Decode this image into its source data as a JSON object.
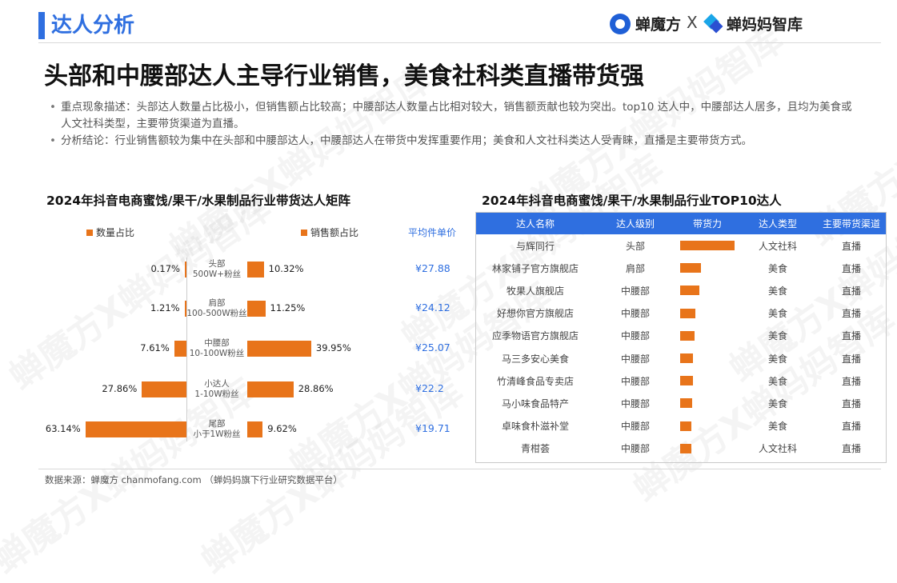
{
  "header": {
    "section_title": "达人分析",
    "logo_left": "蝉魔方",
    "logo_sep": "X",
    "logo_right": "蝉妈妈智库"
  },
  "page_title": "头部和中腰部达人主导行业销售，美食社科类直播带货强",
  "bullets": [
    "重点现象描述：头部达人数量占比极小，但销售额占比较高；中腰部达人数量占比相对较大，销售额贡献也较为突出。top10 达人中，中腰部达人居多，且均为美食或人文社科类型，主要带货渠道为直播。",
    "分析结论：行业销售额较为集中在头部和中腰部达人，中腰部达人在带货中发挥重要作用；美食和人文社科类达人受青睐，直播是主要带货方式。"
  ],
  "watermark": "蝉魔方X蝉妈妈智库",
  "colors": {
    "accent_blue": "#2f6fe0",
    "bar_orange": "#e8741a"
  },
  "chart_data": [
    {
      "type": "bar",
      "title": "2024年抖音电商蜜饯/果干/水果制品行业带货达人矩阵",
      "legend_left": "数量占比",
      "legend_right": "销售额占比",
      "price_header": "平均件单价",
      "categories": [
        {
          "name": "头部",
          "sub": "500W+粉丝"
        },
        {
          "name": "肩部",
          "sub": "100-500W粉丝"
        },
        {
          "name": "中腰部",
          "sub": "10-100W粉丝"
        },
        {
          "name": "小达人",
          "sub": "1-10W粉丝"
        },
        {
          "name": "尾部",
          "sub": "小于1W粉丝"
        }
      ],
      "series": [
        {
          "name": "数量占比",
          "values": [
            0.17,
            1.21,
            7.61,
            27.86,
            63.14
          ],
          "labels": [
            "0.17%",
            "1.21%",
            "7.61%",
            "27.86%",
            "63.14%"
          ]
        },
        {
          "name": "销售额占比",
          "values": [
            10.32,
            11.25,
            39.95,
            28.86,
            9.62
          ],
          "labels": [
            "10.32%",
            "11.25%",
            "39.95%",
            "28.86%",
            "9.62%"
          ]
        }
      ],
      "avg_price": [
        "¥27.88",
        "¥24.12",
        "¥25.07",
        "¥22.2",
        "¥19.71"
      ]
    },
    {
      "type": "table",
      "title": "2024年抖音电商蜜饯/果干/水果制品行业TOP10达人",
      "columns": [
        "达人名称",
        "达人级别",
        "带货力",
        "达人类型",
        "主要带货渠道"
      ],
      "rows": [
        {
          "name": "与辉同行",
          "level": "头部",
          "power": 1.0,
          "type": "人文社科",
          "channel": "直播"
        },
        {
          "name": "林家铺子官方旗舰店",
          "level": "肩部",
          "power": 0.38,
          "type": "美食",
          "channel": "直播"
        },
        {
          "name": "牧果人旗舰店",
          "level": "中腰部",
          "power": 0.36,
          "type": "美食",
          "channel": "直播"
        },
        {
          "name": "好想你官方旗舰店",
          "level": "中腰部",
          "power": 0.28,
          "type": "美食",
          "channel": "直播"
        },
        {
          "name": "应季物语官方旗舰店",
          "level": "中腰部",
          "power": 0.26,
          "type": "美食",
          "channel": "直播"
        },
        {
          "name": "马三多安心美食",
          "level": "中腰部",
          "power": 0.24,
          "type": "美食",
          "channel": "直播"
        },
        {
          "name": "竹清峰食品专卖店",
          "level": "中腰部",
          "power": 0.23,
          "type": "美食",
          "channel": "直播"
        },
        {
          "name": "马小味食品特产",
          "level": "中腰部",
          "power": 0.22,
          "type": "美食",
          "channel": "直播"
        },
        {
          "name": "卓味食朴滋补堂",
          "level": "中腰部",
          "power": 0.21,
          "type": "美食",
          "channel": "直播"
        },
        {
          "name": "青柑荟",
          "level": "中腰部",
          "power": 0.2,
          "type": "人文社科",
          "channel": "直播"
        }
      ]
    }
  ],
  "footer": {
    "source": "数据来源：蝉魔方 chanmofang.com （蝉妈妈旗下行业研究数据平台）"
  }
}
